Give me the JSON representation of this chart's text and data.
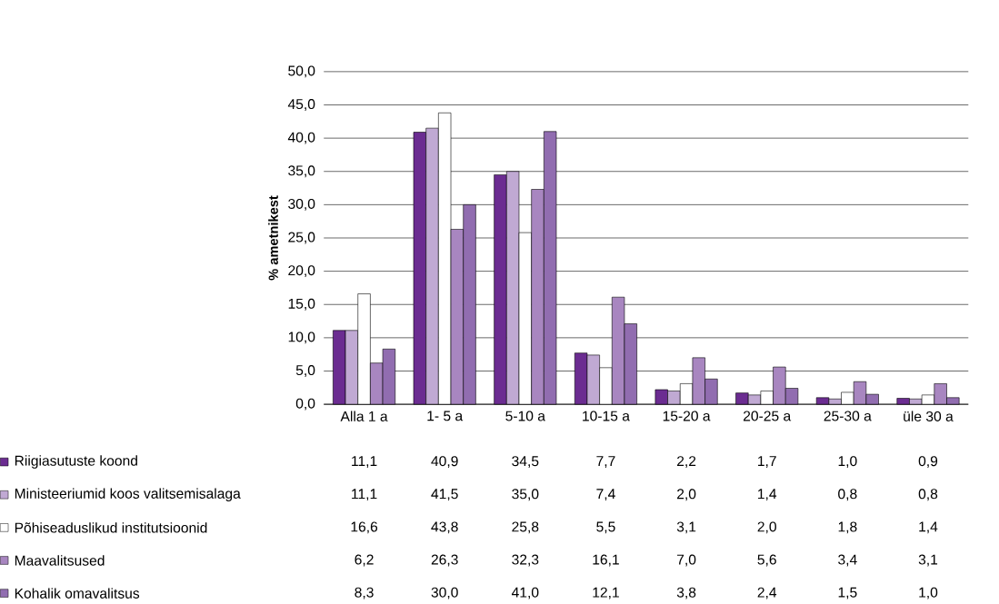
{
  "chart_data": {
    "type": "bar",
    "ylabel": "% ametnikest",
    "categories": [
      "Alla 1 a",
      "1- 5 a",
      "5-10 a",
      "10-15 a",
      "15-20 a",
      "20-25 a",
      "25-30 a",
      "üle 30 a"
    ],
    "series": [
      {
        "name": "Riigiasutuste koond",
        "color": "#6b2c91",
        "values": [
          11.1,
          40.9,
          34.5,
          7.7,
          2.2,
          1.7,
          1.0,
          0.9
        ],
        "value_labels": [
          "11,1",
          "40,9",
          "34,5",
          "7,7",
          "2,2",
          "1,7",
          "1,0",
          "0,9"
        ]
      },
      {
        "name": "Ministeeriumid koos valitsemisalaga",
        "color": "#c0a9d3",
        "values": [
          11.1,
          41.5,
          35.0,
          7.4,
          2.0,
          1.4,
          0.8,
          0.8
        ],
        "value_labels": [
          "11,1",
          "41,5",
          "35,0",
          "7,4",
          "2,0",
          "1,4",
          "0,8",
          "0,8"
        ]
      },
      {
        "name": "Põhiseaduslikud institutsioonid",
        "color": "#ffffff",
        "values": [
          16.6,
          43.8,
          25.8,
          5.5,
          3.1,
          2.0,
          1.8,
          1.4
        ],
        "value_labels": [
          "16,6",
          "43,8",
          "25,8",
          "5,5",
          "3,1",
          "2,0",
          "1,8",
          "1,4"
        ]
      },
      {
        "name": "Maavalitsused",
        "color": "#a886c0",
        "values": [
          6.2,
          26.3,
          32.3,
          16.1,
          7.0,
          5.6,
          3.4,
          3.1
        ],
        "value_labels": [
          "6,2",
          "26,3",
          "32,3",
          "16,1",
          "7,0",
          "5,6",
          "3,4",
          "3,1"
        ]
      },
      {
        "name": "Kohalik omavalitsus",
        "color": "#916db0",
        "values": [
          8.3,
          30.0,
          41.0,
          12.1,
          3.8,
          2.4,
          1.5,
          1.0
        ],
        "value_labels": [
          "8,3",
          "30,0",
          "41,0",
          "12,1",
          "3,8",
          "2,4",
          "1,5",
          "1,0"
        ]
      }
    ],
    "ylim": [
      0,
      50
    ],
    "yticks": [
      {
        "value": 0,
        "label": "0,0"
      },
      {
        "value": 5,
        "label": "5,0"
      },
      {
        "value": 10,
        "label": "10,0"
      },
      {
        "value": 15,
        "label": "15,0"
      },
      {
        "value": 20,
        "label": "20,0"
      },
      {
        "value": 25,
        "label": "25,0"
      },
      {
        "value": 30,
        "label": "30,0"
      },
      {
        "value": 35,
        "label": "35,0"
      },
      {
        "value": 40,
        "label": "40,0"
      },
      {
        "value": 45,
        "label": "45,0"
      },
      {
        "value": 50,
        "label": "50,0"
      }
    ],
    "grid": "y",
    "legend": "bottom"
  }
}
